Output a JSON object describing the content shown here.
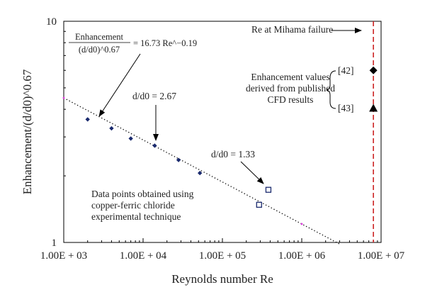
{
  "chart_data": {
    "type": "scatter",
    "xlabel": "Reynolds number Re",
    "ylabel": "Enhancement/(d/d0)^0.67",
    "x_scale": "log",
    "y_scale": "log",
    "xlim": [
      1000,
      10000000
    ],
    "ylim": [
      1,
      10
    ],
    "x_tick_labels": [
      "1.00E + 03",
      "1.00E + 04",
      "1.00E + 05",
      "1.00E + 06",
      "1.00E + 07"
    ],
    "y_tick_labels": [
      "1",
      "10"
    ],
    "grid": false,
    "series": [
      {
        "marker": "filled-diamond",
        "color": "#1a2a6e",
        "x": [
          2000,
          4000,
          7000,
          14000,
          28000,
          52000
        ],
        "y": [
          3.6,
          3.28,
          2.95,
          2.74,
          2.36,
          2.06
        ]
      },
      {
        "marker": "open-square",
        "color": "#1a2a6e",
        "x": [
          290000,
          380000
        ],
        "y": [
          1.48,
          1.73
        ]
      },
      {
        "marker": "filled-diamond",
        "color": "#000000",
        "x": [
          8000000
        ],
        "y": [
          6.0
        ]
      },
      {
        "marker": "filled-triangle",
        "color": "#000000",
        "x": [
          8000000
        ],
        "y": [
          4.05
        ]
      }
    ],
    "fit_line": {
      "style": "dotted",
      "color": "#000000",
      "coefficient": 16.73,
      "exponent": -0.19,
      "x_range": [
        1000,
        3000000
      ],
      "end_markers_color": "#e040e0"
    },
    "vline": {
      "x": 8000000,
      "color": "#cc2222",
      "style": "dashed"
    },
    "annotations": {
      "mihama": "Re at Mihama failure",
      "equation_numerator": "Enhancement",
      "equation_denominator": "(d/d0)^0.67",
      "equation_rhs": "= 16.73 Re^−0.19",
      "d267": "d/d0 = 2.67",
      "d133": "d/d0 = 1.33",
      "cfd_line1": "Enhancement values",
      "cfd_line2": "derived from published",
      "cfd_line3": "CFD results",
      "ref42": "[42]",
      "ref43": "[43]",
      "data_line1": "Data points obtained using",
      "data_line2": "copper-ferric chloride",
      "data_line3": "experimental technique"
    }
  }
}
